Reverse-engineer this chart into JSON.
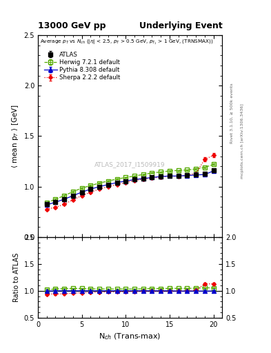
{
  "title_left": "13000 GeV pp",
  "title_right": "Underlying Event",
  "inner_label": "Average p$_T$ vs N$_{ch}$ (|$\\eta$| < 2.5, p$_T$ > 0.5 GeV, p$_{T_1}$ > 1 GeV, (TRNSMAX))",
  "xlabel": "N$_{ch}$ (Trans-max)",
  "ylabel_main": "$\\langle$ mean p$_T$ $\\rangle$ [GeV]",
  "ylabel_ratio": "Ratio to ATLAS",
  "watermark": "ATLAS_2017_I1509919",
  "rivet_label": "Rivet 3.1.10, ≥ 500k events",
  "mcplots_label": "mcplots.cern.ch [arXiv:1306.3436]",
  "ylim_main": [
    0.5,
    2.5
  ],
  "ylim_ratio": [
    0.5,
    2.0
  ],
  "xlim": [
    0,
    21
  ],
  "atlas_x": [
    1,
    2,
    3,
    4,
    5,
    6,
    7,
    8,
    9,
    10,
    11,
    12,
    13,
    14,
    15,
    16,
    17,
    18,
    19,
    20
  ],
  "atlas_y": [
    0.825,
    0.845,
    0.875,
    0.91,
    0.945,
    0.975,
    1.0,
    1.02,
    1.04,
    1.055,
    1.07,
    1.08,
    1.09,
    1.1,
    1.105,
    1.11,
    1.115,
    1.12,
    1.125,
    1.16
  ],
  "atlas_yerr": [
    0.015,
    0.01,
    0.008,
    0.007,
    0.006,
    0.005,
    0.005,
    0.004,
    0.004,
    0.004,
    0.004,
    0.004,
    0.004,
    0.004,
    0.005,
    0.005,
    0.005,
    0.006,
    0.007,
    0.008
  ],
  "herwig_x": [
    1,
    2,
    3,
    4,
    5,
    6,
    7,
    8,
    9,
    10,
    11,
    12,
    13,
    14,
    15,
    16,
    17,
    18,
    19,
    20
  ],
  "herwig_y": [
    0.84,
    0.875,
    0.91,
    0.95,
    0.985,
    1.01,
    1.035,
    1.055,
    1.075,
    1.09,
    1.105,
    1.12,
    1.135,
    1.145,
    1.155,
    1.16,
    1.165,
    1.175,
    1.19,
    1.22
  ],
  "herwig_yerr": [
    0.01,
    0.008,
    0.007,
    0.006,
    0.005,
    0.005,
    0.004,
    0.004,
    0.004,
    0.003,
    0.003,
    0.003,
    0.003,
    0.003,
    0.004,
    0.004,
    0.004,
    0.005,
    0.006,
    0.007
  ],
  "pythia_x": [
    1,
    2,
    3,
    4,
    5,
    6,
    7,
    8,
    9,
    10,
    11,
    12,
    13,
    14,
    15,
    16,
    17,
    18,
    19,
    20
  ],
  "pythia_y": [
    0.82,
    0.845,
    0.875,
    0.91,
    0.945,
    0.975,
    1.0,
    1.02,
    1.04,
    1.055,
    1.07,
    1.08,
    1.09,
    1.1,
    1.105,
    1.105,
    1.11,
    1.115,
    1.12,
    1.155
  ],
  "pythia_yerr": [
    0.008,
    0.006,
    0.005,
    0.005,
    0.004,
    0.004,
    0.003,
    0.003,
    0.003,
    0.003,
    0.003,
    0.003,
    0.003,
    0.003,
    0.003,
    0.003,
    0.004,
    0.004,
    0.005,
    0.006
  ],
  "sherpa_x": [
    1,
    2,
    3,
    4,
    5,
    6,
    7,
    8,
    9,
    10,
    11,
    12,
    13,
    14,
    15,
    16,
    17,
    18,
    19,
    20
  ],
  "sherpa_y": [
    0.775,
    0.795,
    0.825,
    0.87,
    0.91,
    0.945,
    0.975,
    1.0,
    1.02,
    1.04,
    1.06,
    1.075,
    1.085,
    1.095,
    1.105,
    1.1,
    1.115,
    1.13,
    1.27,
    1.31
  ],
  "sherpa_yerr": [
    0.012,
    0.009,
    0.008,
    0.007,
    0.006,
    0.005,
    0.005,
    0.004,
    0.004,
    0.004,
    0.004,
    0.004,
    0.004,
    0.005,
    0.005,
    0.005,
    0.006,
    0.007,
    0.02,
    0.02
  ],
  "atlas_color": "#000000",
  "herwig_color": "#55aa00",
  "pythia_color": "#0000cc",
  "sherpa_color": "#ee0000"
}
